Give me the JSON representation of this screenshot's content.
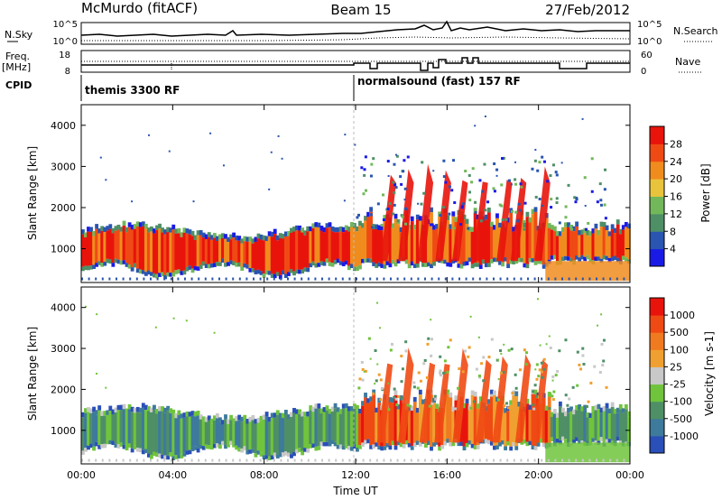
{
  "header": {
    "station": "McMurdo (fitACF)",
    "beam": "Beam 15",
    "date": "27/Feb/2012"
  },
  "strips": {
    "nsky_label": "N.Sky",
    "nsky_ticks": [
      "10^5",
      "10^0"
    ],
    "nsearch_label": "N.Search",
    "nsearch_ticks": [
      "10^5",
      "10^0"
    ],
    "freq_label_1": "Freq.",
    "freq_label_2": "[MHz]",
    "freq_ticks": [
      "18",
      "8"
    ],
    "nave_label": "Nave",
    "nave_ticks": [
      "60",
      "0"
    ],
    "cpid_label": "CPID",
    "cpid_segments": [
      {
        "label": "themis 3300 RF",
        "start_hour": 0
      },
      {
        "label": "normalsound (fast) 157 RF",
        "start_hour": 12
      }
    ]
  },
  "chart_data": [
    {
      "type": "heatmap",
      "title": "",
      "xlabel": "",
      "ylabel": "Slant Range [km]",
      "xlim": [
        0,
        24
      ],
      "ylim": [
        180,
        4500
      ],
      "x_ticks": [],
      "y_ticks": [
        1000,
        2000,
        3000,
        4000
      ],
      "colorbar": {
        "label": "Power [dB]",
        "ticks": [
          "4",
          "8",
          "12",
          "16",
          "20",
          "24",
          "28"
        ],
        "colors": [
          "#1a1ae6",
          "#2a55b0",
          "#4f8f66",
          "#72b85a",
          "#e8c43c",
          "#f08c1e",
          "#f04a14",
          "#e8140c"
        ]
      }
    },
    {
      "type": "heatmap",
      "title": "",
      "xlabel": "Time UT",
      "ylabel": "Slant Range [km]",
      "xlim": [
        0,
        24
      ],
      "ylim": [
        180,
        4500
      ],
      "x_ticks": [
        "00:00",
        "04:00",
        "08:00",
        "12:00",
        "16:00",
        "20:00",
        "00:00"
      ],
      "y_ticks": [
        1000,
        2000,
        3000,
        4000
      ],
      "colorbar": {
        "label": "Velocity [m s-1]",
        "ticks": [
          "1000",
          "500",
          "100",
          "25",
          "-25",
          "-100",
          "-500",
          "-1000"
        ],
        "colors": [
          "#2a4fb8",
          "#3d7a9c",
          "#4f8f66",
          "#6fc43c",
          "#c8c8c8",
          "#f0a030",
          "#f07a20",
          "#f04a14",
          "#e8140c"
        ]
      }
    }
  ],
  "colors": {
    "power_red": "#e8140c",
    "power_orange": "#f04a14",
    "power_blue": "#2a55b0",
    "vel_green": "#4f8f66",
    "vel_orange": "#f07a20"
  }
}
